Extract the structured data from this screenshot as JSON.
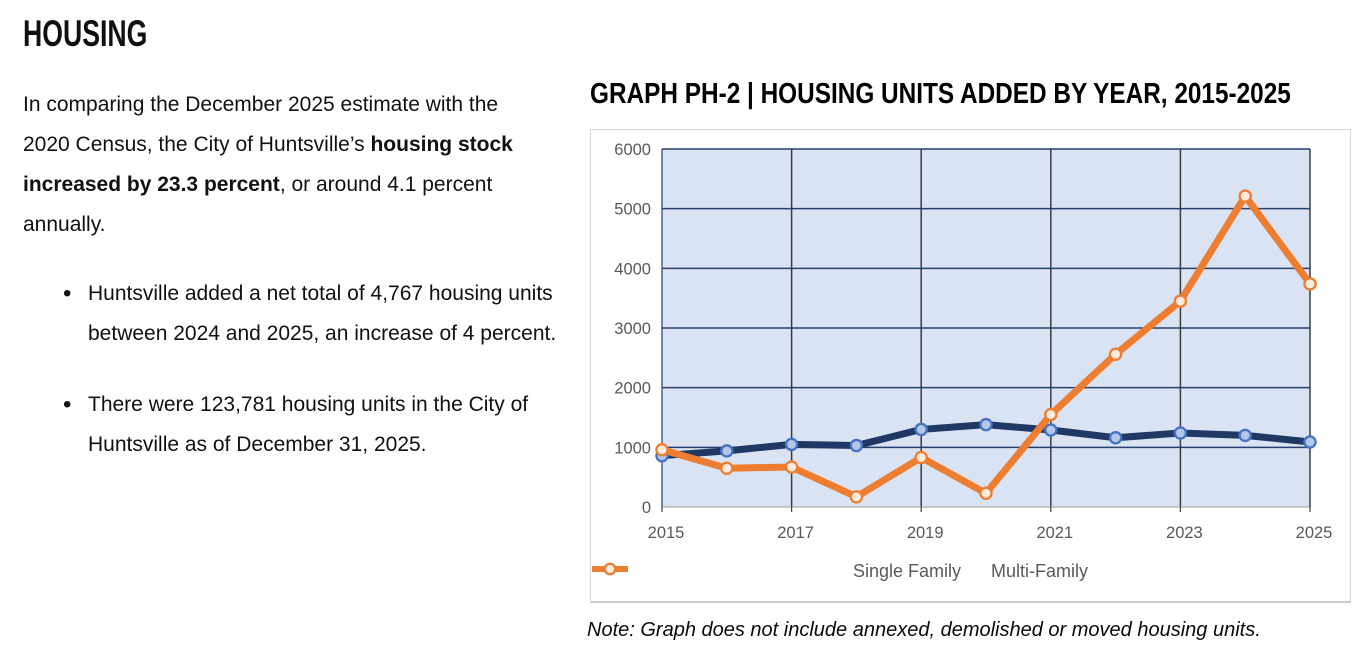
{
  "left_column": {
    "heading": "HOUSING",
    "intro": {
      "part1": "In comparing the December 2025 estimate with the 2020 Census, the City of Huntsville’s ",
      "part2_bold": "housing stock increased by 23.3 percent",
      "part3": ", or around 4.1 percent annually."
    },
    "bullets": [
      "Huntsville added a net total of 4,767 housing units between 2024 and 2025, an increase of 4 percent.",
      "There were 123,781 housing units in the City of Huntsville as of December 31, 2025."
    ]
  },
  "chart_section": {
    "title": "GRAPH PH-2 | HOUSING UNITS ADDED BY YEAR, 2015-2025",
    "note": "Note: Graph does not include annexed, demolished or moved housing units."
  },
  "chart_data": {
    "type": "line",
    "title": "GRAPH PH-2 | HOUSING UNITS ADDED BY YEAR, 2015-2025",
    "x": [
      2015,
      2016,
      2017,
      2018,
      2019,
      2020,
      2021,
      2022,
      2023,
      2024,
      2025
    ],
    "series": [
      {
        "name": "Single Family",
        "color": "#1F3864",
        "marker_fill": "#B4C7E7",
        "marker_stroke": "#4472C4",
        "values": [
          860,
          940,
          1050,
          1030,
          1300,
          1380,
          1290,
          1160,
          1240,
          1200,
          1090
        ]
      },
      {
        "name": "Multi-Family",
        "color": "#ED7D31",
        "marker_fill": "#FDEBDD",
        "marker_stroke": "#ED7D31",
        "values": [
          960,
          650,
          670,
          170,
          830,
          230,
          1550,
          2560,
          3450,
          5210,
          3740
        ]
      }
    ],
    "ylim": [
      0,
      6000
    ],
    "yticks": [
      0,
      1000,
      2000,
      3000,
      4000,
      5000,
      6000
    ],
    "xticks": [
      2015,
      2017,
      2019,
      2021,
      2023,
      2025
    ],
    "grid": true,
    "legend_position": "bottom",
    "colors": {
      "plot_bg": "#DAE3F3",
      "hgrid": "#24406E",
      "vgrid": "#3B3B3B",
      "zero_axis": "#9E9E9E",
      "axis_labels": "#595959",
      "frame_border": "#D6D6D6"
    }
  }
}
